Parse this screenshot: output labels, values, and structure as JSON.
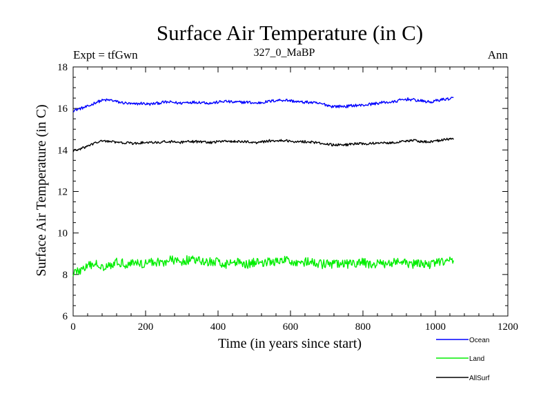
{
  "chart_data": {
    "type": "line",
    "title": "Surface Air Temperature (in C)",
    "subtitle_left": "Expt = tfGwn",
    "subtitle_center": "327_0_MaBP",
    "subtitle_right": "Ann",
    "xlabel": "Time (in years since start)",
    "ylabel": "Surface Air Temperature (in C)",
    "xlim": [
      0,
      1200
    ],
    "ylim": [
      6,
      18
    ],
    "xticks": [
      0,
      200,
      400,
      600,
      800,
      1000,
      1200
    ],
    "yticks": [
      6,
      8,
      10,
      12,
      14,
      16,
      18
    ],
    "x_end": 1050,
    "series": [
      {
        "name": "Ocean",
        "color": "#0000ff",
        "values": [
          15.9,
          16.0,
          16.1,
          16.3,
          16.4,
          16.4,
          16.3,
          16.25,
          16.2,
          16.25,
          16.2,
          16.25,
          16.3,
          16.3,
          16.25,
          16.3,
          16.3,
          16.3,
          16.25,
          16.3,
          16.35,
          16.3,
          16.3,
          16.3,
          16.25,
          16.3,
          16.35,
          16.4,
          16.4,
          16.35,
          16.3,
          16.3,
          16.25,
          16.2,
          16.1,
          16.1,
          16.1,
          16.15,
          16.15,
          16.2,
          16.25,
          16.3,
          16.3,
          16.4,
          16.45,
          16.4,
          16.35,
          16.3,
          16.4,
          16.45,
          16.5
        ]
      },
      {
        "name": "Land",
        "color": "#00ee00",
        "values": [
          8.1,
          8.2,
          8.4,
          8.5,
          8.4,
          8.5,
          8.6,
          8.5,
          8.6,
          8.5,
          8.6,
          8.6,
          8.6,
          8.7,
          8.6,
          8.7,
          8.7,
          8.6,
          8.6,
          8.6,
          8.5,
          8.6,
          8.6,
          8.5,
          8.6,
          8.6,
          8.6,
          8.6,
          8.7,
          8.6,
          8.6,
          8.6,
          8.5,
          8.5,
          8.5,
          8.5,
          8.5,
          8.5,
          8.6,
          8.5,
          8.5,
          8.5,
          8.6,
          8.6,
          8.5,
          8.5,
          8.5,
          8.5,
          8.6,
          8.6,
          8.7
        ]
      },
      {
        "name": "AllSurf",
        "color": "#000000",
        "values": [
          13.95,
          14.05,
          14.2,
          14.35,
          14.45,
          14.4,
          14.35,
          14.35,
          14.3,
          14.35,
          14.35,
          14.35,
          14.4,
          14.4,
          14.35,
          14.4,
          14.4,
          14.4,
          14.35,
          14.4,
          14.45,
          14.4,
          14.4,
          14.4,
          14.35,
          14.4,
          14.45,
          14.45,
          14.45,
          14.4,
          14.4,
          14.4,
          14.35,
          14.3,
          14.25,
          14.25,
          14.25,
          14.3,
          14.3,
          14.3,
          14.35,
          14.35,
          14.35,
          14.4,
          14.45,
          14.45,
          14.4,
          14.4,
          14.45,
          14.5,
          14.55
        ]
      }
    ],
    "noise_amplitude": {
      "Ocean": 0.07,
      "Land": 0.22,
      "AllSurf": 0.06
    },
    "legend_position": "bottom-right"
  }
}
